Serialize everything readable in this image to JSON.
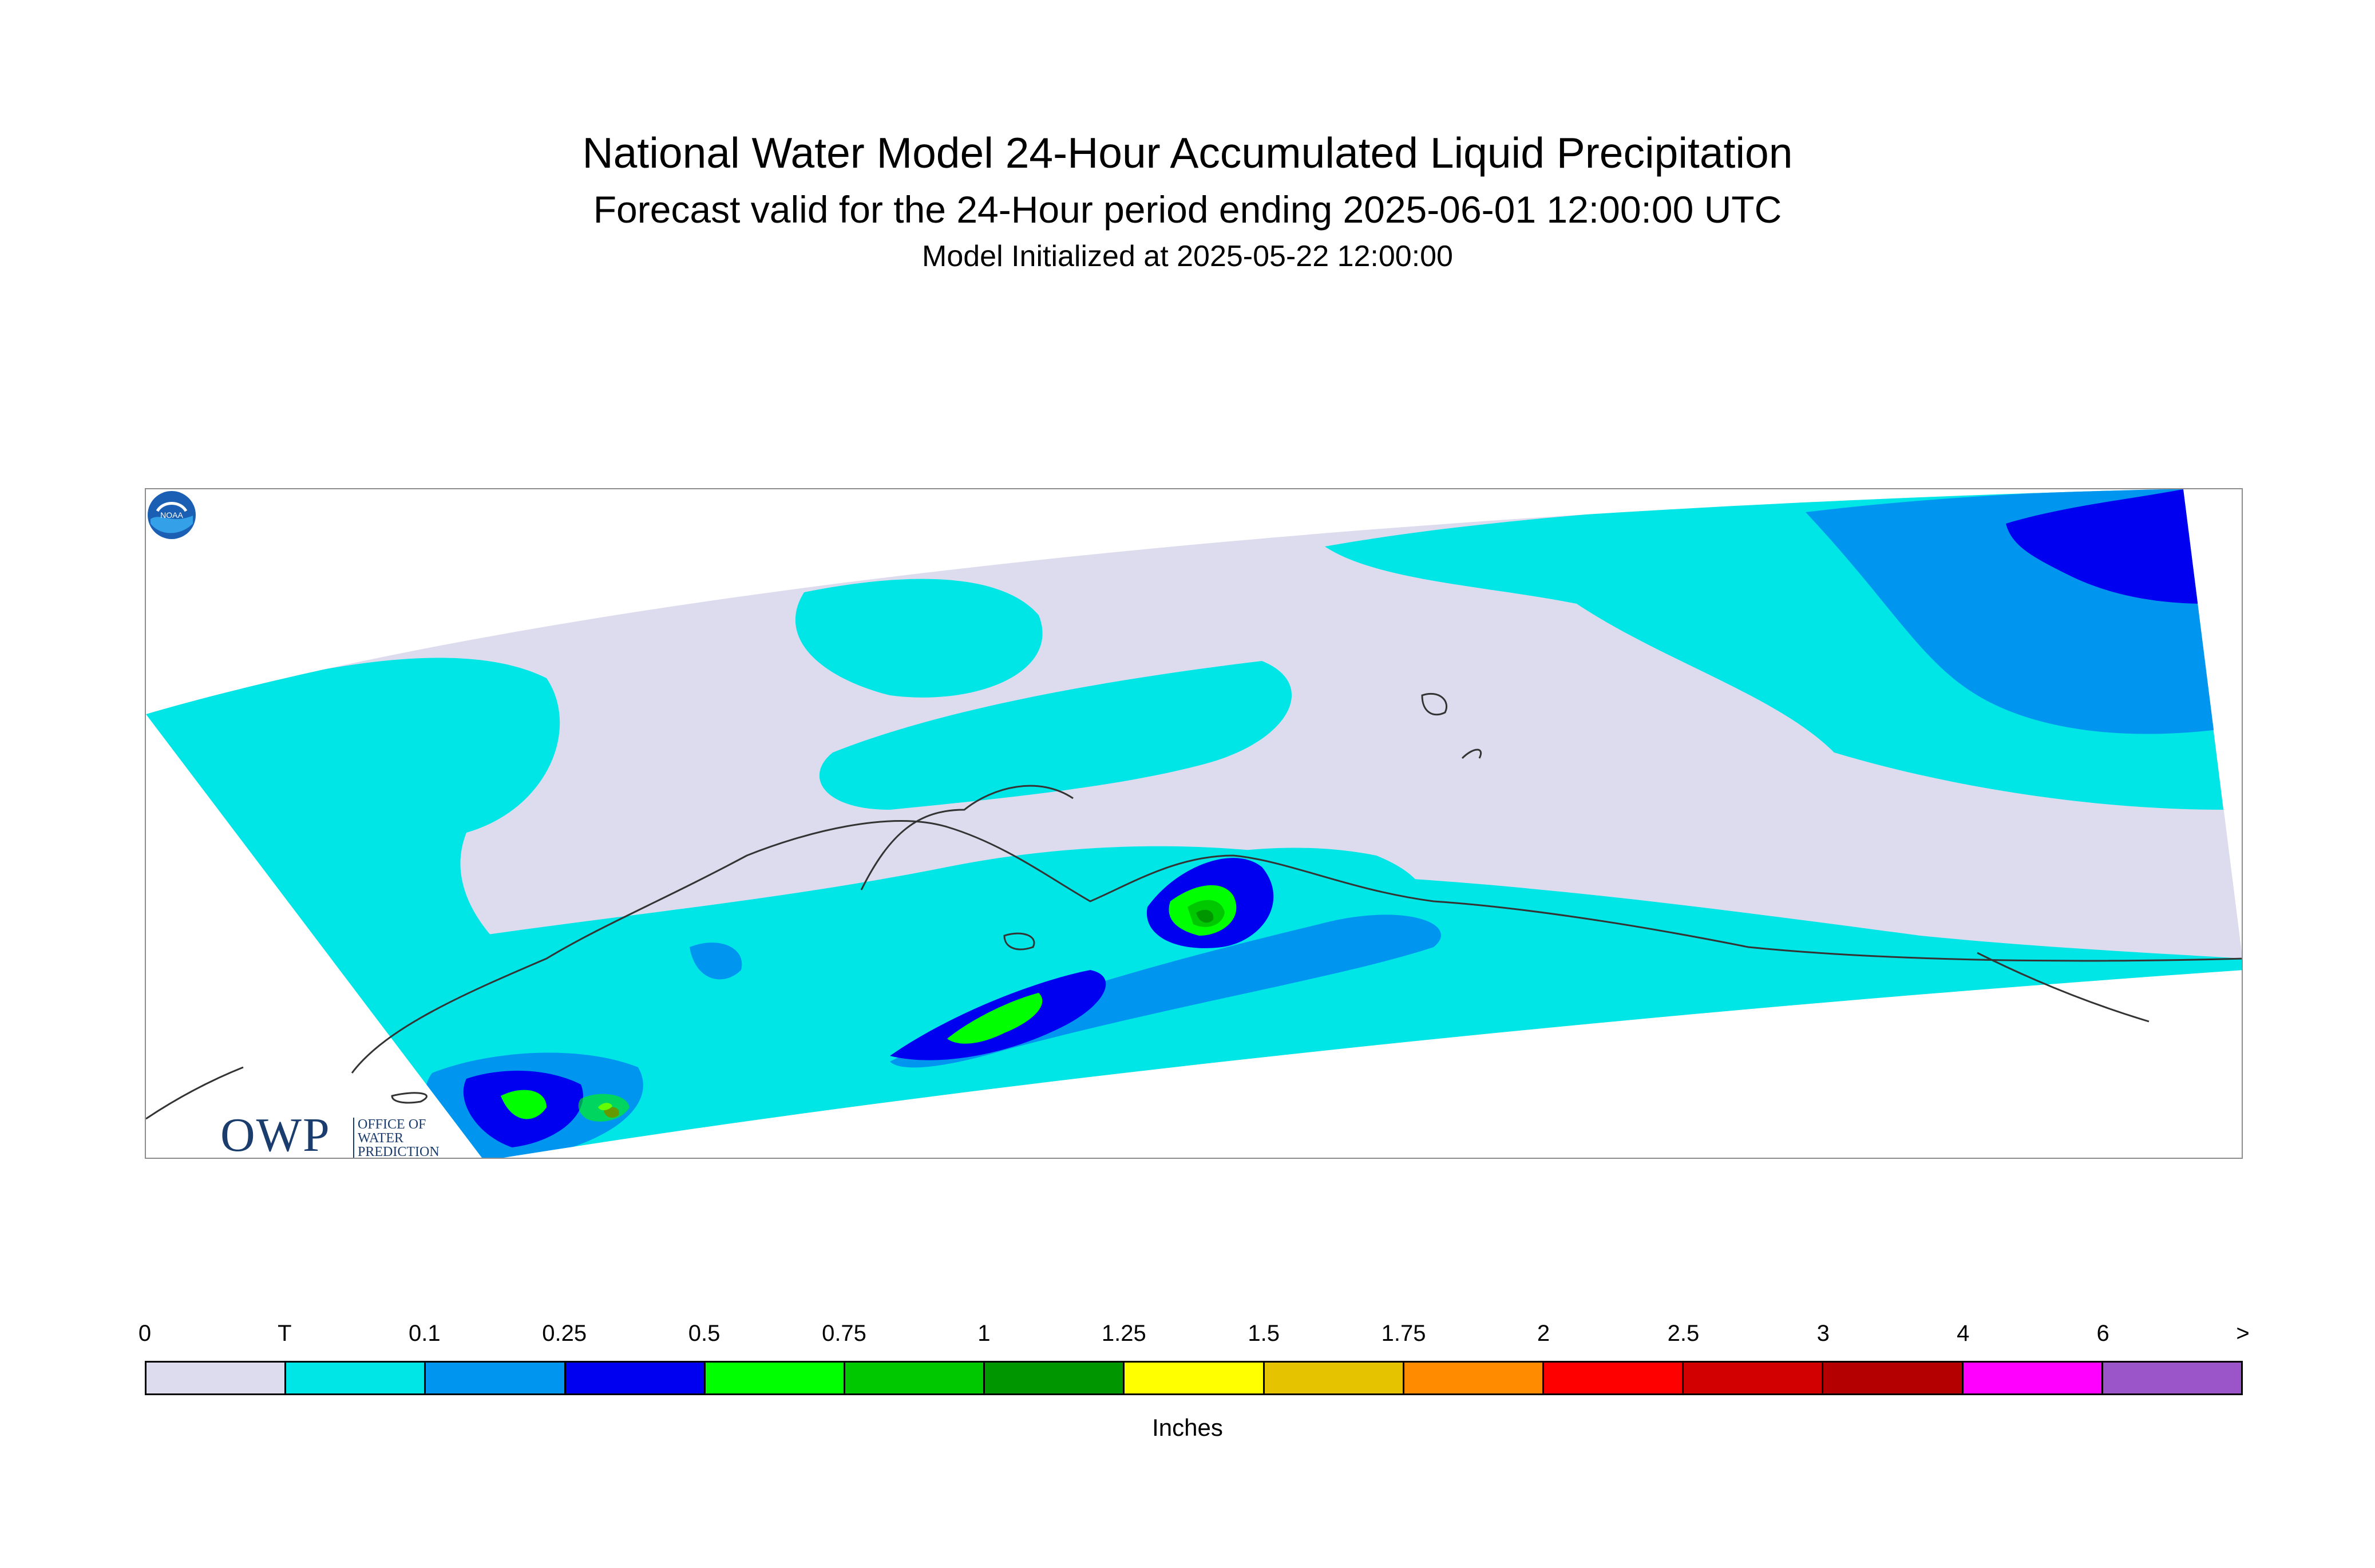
{
  "header": {
    "title": "National Water Model 24-Hour Accumulated Liquid Precipitation",
    "subtitle": "Forecast valid for the 24-Hour period ending 2025-06-01 12:00:00 UTC",
    "init": "Model Initialized at 2025-05-22 12:00:00"
  },
  "map": {
    "logos": {
      "owp_mark": "OWP",
      "owp_text": [
        "OFFICE OF",
        "WATER",
        "PREDICTION"
      ],
      "noaa_text": "NOAA"
    }
  },
  "legend": {
    "labels": [
      "0",
      "T",
      "0.1",
      "0.25",
      "0.5",
      "0.75",
      "1",
      "1.25",
      "1.5",
      "1.75",
      "2",
      "2.5",
      "3",
      "4",
      "6",
      ">"
    ],
    "colors": [
      "#dcdcee",
      "#00e6e6",
      "#0096f0",
      "#0000f0",
      "#00ff00",
      "#00c800",
      "#009600",
      "#ffff00",
      "#e6c300",
      "#ff8c00",
      "#ff0000",
      "#d20000",
      "#b40000",
      "#ff00ff",
      "#9b55c8"
    ],
    "unit": "Inches"
  }
}
